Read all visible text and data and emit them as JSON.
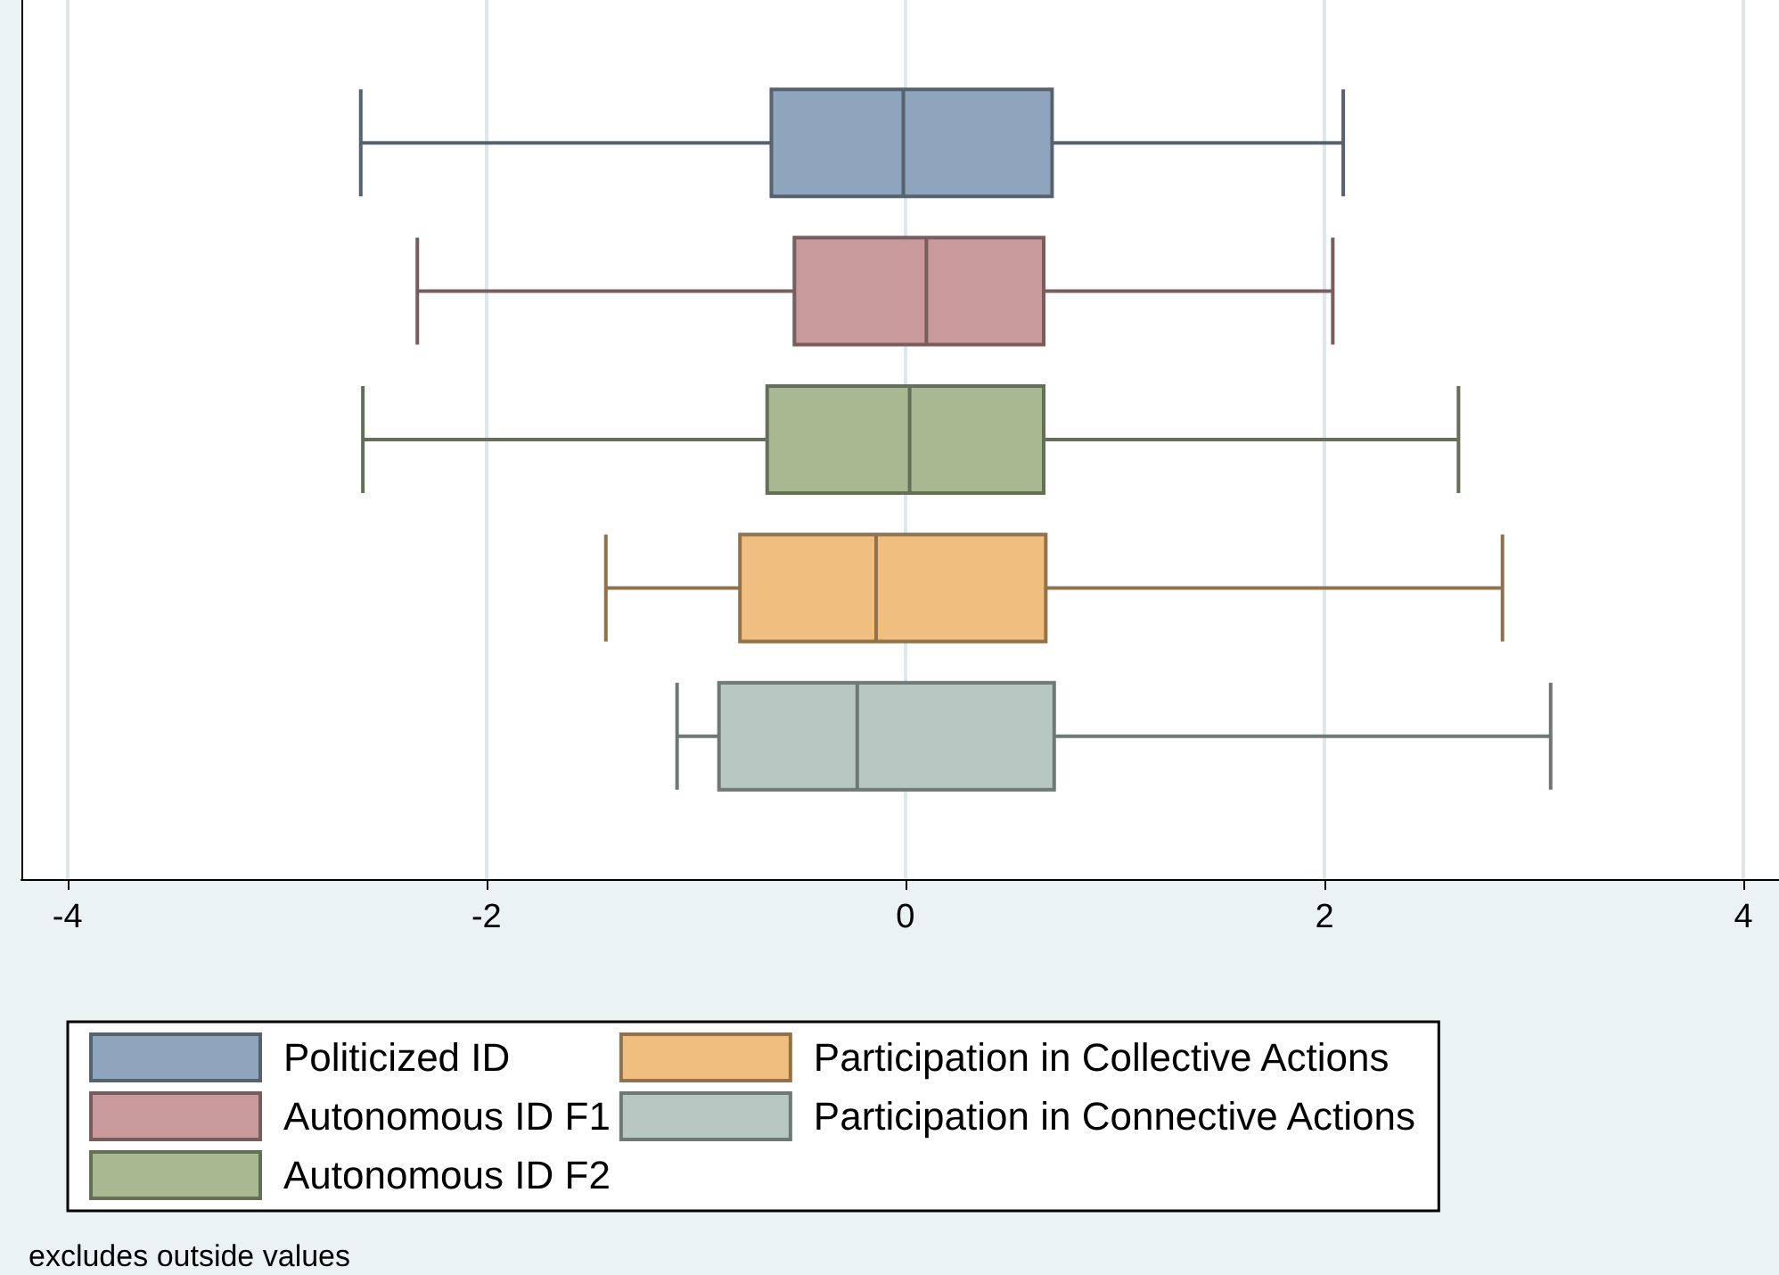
{
  "chart_data": {
    "type": "box",
    "orientation": "horizontal",
    "categories": [
      null
    ],
    "series": [
      {
        "name": "Politicized ID",
        "color": "#8ea5bd",
        "boxes": [
          {
            "low": -2.6,
            "q1": -0.64,
            "median": -0.01,
            "q3": 0.7,
            "high": 2.09
          }
        ]
      },
      {
        "name": "Autonomous ID F1",
        "color": "#c89a9c",
        "boxes": [
          {
            "low": -2.33,
            "q1": -0.53,
            "median": 0.1,
            "q3": 0.66,
            "high": 2.04
          }
        ]
      },
      {
        "name": "Autonomous ID F2",
        "color": "#a8b992",
        "boxes": [
          {
            "low": -2.59,
            "q1": -0.66,
            "median": 0.02,
            "q3": 0.66,
            "high": 2.64
          }
        ]
      },
      {
        "name": "Participation in Collective Actions",
        "color": "#f0bf7f",
        "boxes": [
          {
            "low": -1.43,
            "q1": -0.79,
            "median": -0.14,
            "q3": 0.67,
            "high": 2.85
          }
        ]
      },
      {
        "name": "Participation in Connective Actions",
        "color": "#b7c8c3",
        "boxes": [
          {
            "low": -1.09,
            "q1": -0.89,
            "median": -0.23,
            "q3": 0.71,
            "high": 3.08
          }
        ]
      }
    ],
    "xlim": [
      -4.22,
      4.17
    ],
    "xticks": [
      -4,
      -2,
      0,
      2,
      4
    ],
    "grid": "x",
    "legend": "bottom",
    "annotations": [
      "excludes outside values"
    ]
  }
}
